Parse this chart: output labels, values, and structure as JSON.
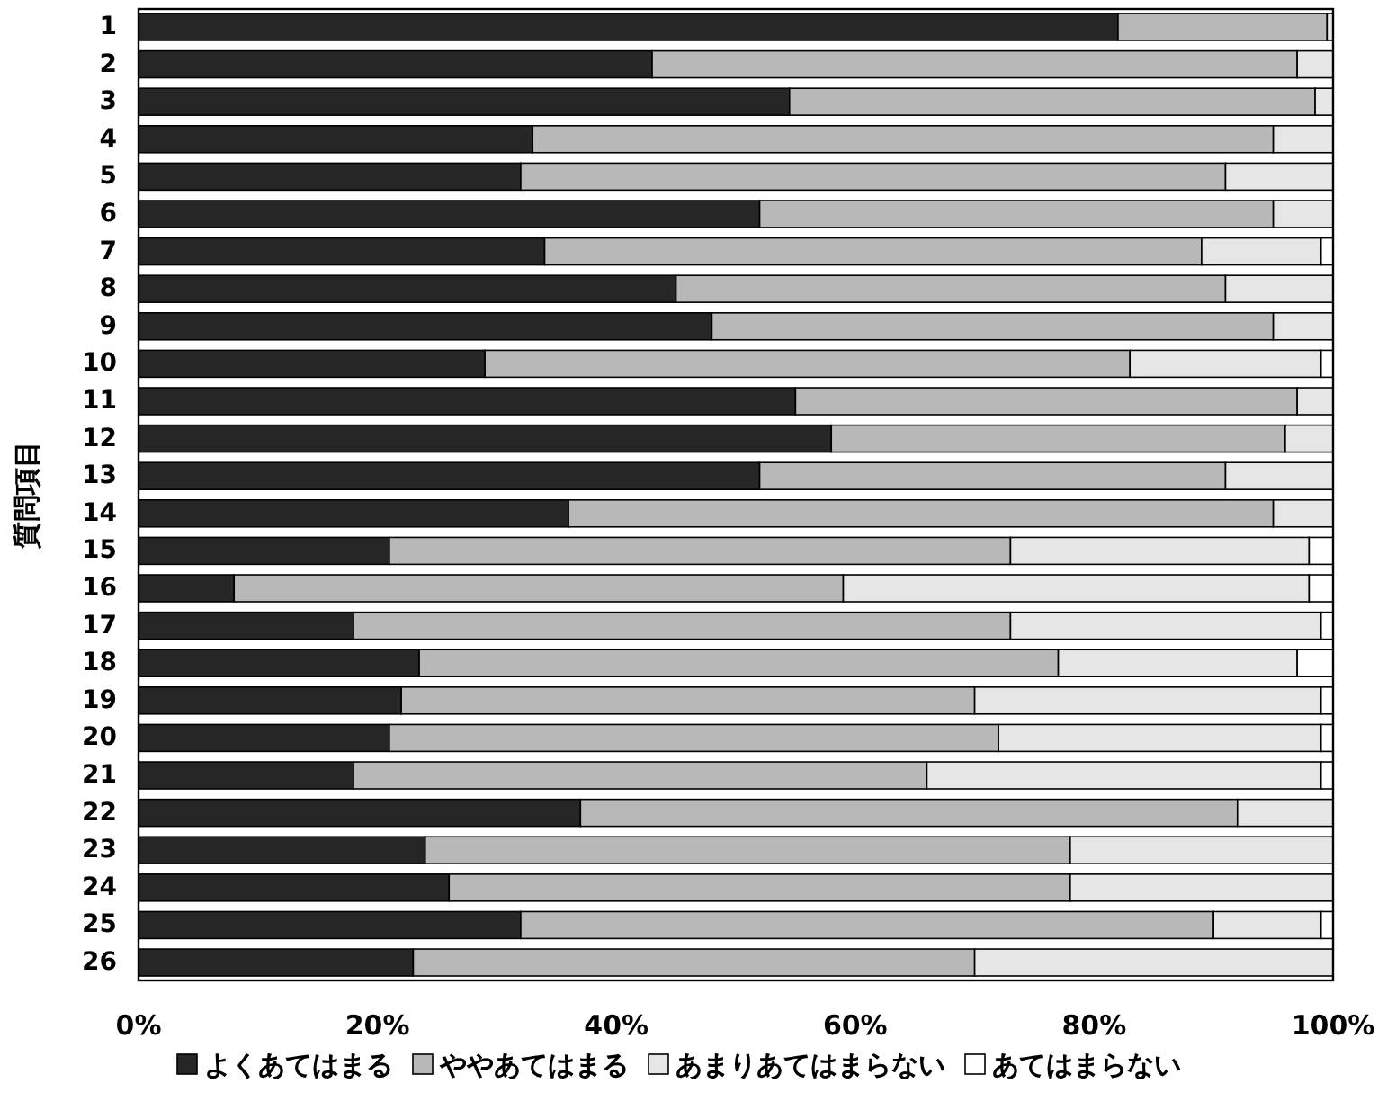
{
  "chart_data": {
    "type": "bar",
    "orientation": "horizontal",
    "stacked": true,
    "ylabel": "質問項目",
    "categories": [
      "1",
      "2",
      "3",
      "4",
      "5",
      "6",
      "7",
      "8",
      "9",
      "10",
      "11",
      "12",
      "13",
      "14",
      "15",
      "16",
      "17",
      "18",
      "19",
      "20",
      "21",
      "22",
      "23",
      "24",
      "25",
      "26"
    ],
    "series": [
      {
        "name": "よくあてはまる",
        "color": "#262626",
        "values": [
          82,
          43,
          54.5,
          33,
          32,
          52,
          34,
          45,
          48,
          29,
          55,
          58,
          52,
          36,
          21,
          8,
          18,
          23.5,
          22,
          21,
          18,
          37,
          24,
          26,
          32,
          23
        ]
      },
      {
        "name": "ややあてはまる",
        "color": "#b8b8b8",
        "values": [
          17.5,
          54,
          44,
          62,
          59,
          43,
          55,
          46,
          47,
          54,
          42,
          38,
          39,
          59,
          52,
          51,
          55,
          53.5,
          48,
          51,
          48,
          55,
          54,
          52,
          58,
          47
        ]
      },
      {
        "name": "あまりあてはまらない",
        "color": "#e6e6e6",
        "values": [
          0.5,
          3,
          1.5,
          5,
          9,
          5,
          10,
          9,
          5,
          16,
          3,
          4,
          9,
          5,
          25,
          39,
          26,
          20,
          29,
          27,
          33,
          8,
          22,
          22,
          9,
          30
        ]
      },
      {
        "name": "あてはまらない",
        "color": "#ffffff",
        "values": [
          null,
          0,
          0,
          0,
          0,
          0,
          1,
          0,
          0,
          1,
          0,
          0,
          0,
          0,
          2,
          2,
          1,
          3,
          1,
          1,
          1,
          0,
          0,
          0,
          1,
          0
        ]
      }
    ],
    "xlim": [
      0,
      100
    ],
    "xticks": [
      {
        "value": 0,
        "label": "0%"
      },
      {
        "value": 20,
        "label": "20%"
      },
      {
        "value": 40,
        "label": "40%"
      },
      {
        "value": 60,
        "label": "60%"
      },
      {
        "value": 80,
        "label": "80%"
      },
      {
        "value": 100,
        "label": "100%"
      }
    ],
    "grid": false,
    "legend": "bottom"
  }
}
